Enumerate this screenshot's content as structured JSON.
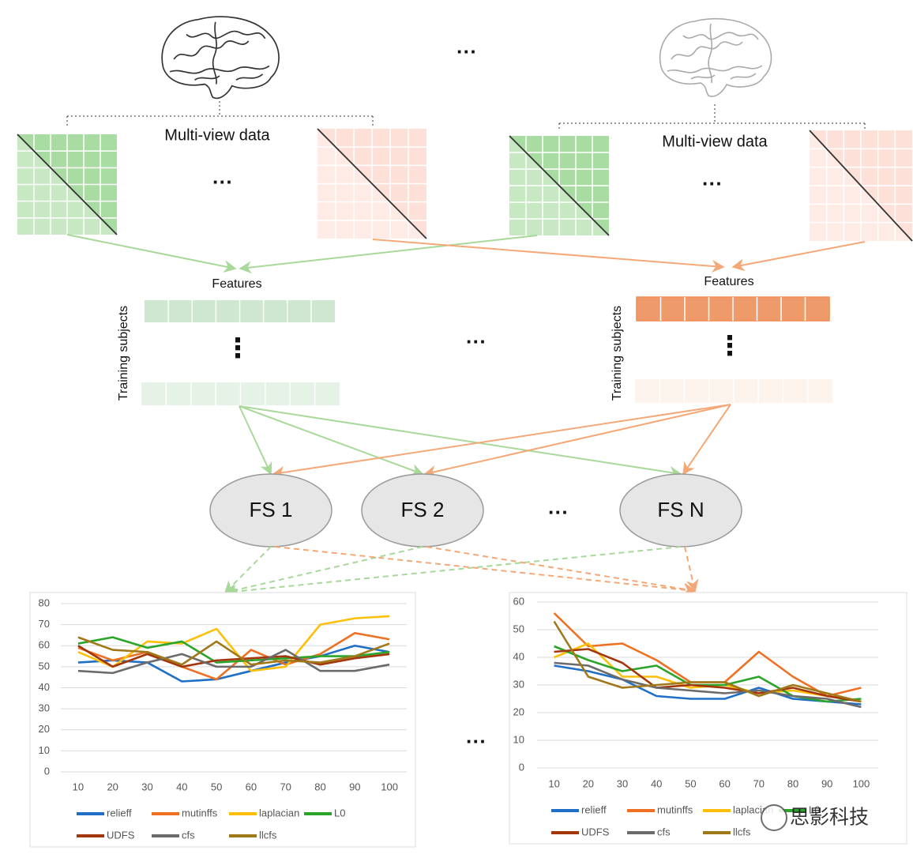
{
  "diagram": {
    "multi_view_label": "Multi-view data",
    "features_label": "Features",
    "subjects_label": "Training subjects",
    "fs_nodes": [
      "FS 1",
      "FS 2",
      "FS N"
    ],
    "ellipsis": "···",
    "vertical_ellipsis": "⋮",
    "watermark": "思影科技"
  },
  "chart_data": [
    {
      "type": "line",
      "categories": [
        "10",
        "20",
        "30",
        "40",
        "50",
        "60",
        "70",
        "80",
        "90",
        "100"
      ],
      "ylim": [
        0,
        80
      ],
      "yticks": [
        0,
        10,
        20,
        30,
        40,
        50,
        60,
        70,
        80
      ],
      "grid": true,
      "legend": "bottom",
      "series": [
        {
          "name": "relieff",
          "color": "#1f6fc6",
          "values": [
            52,
            53,
            52,
            43,
            44,
            48,
            52,
            55,
            60,
            57
          ]
        },
        {
          "name": "mutinffs",
          "color": "#ef7022",
          "values": [
            59,
            53,
            57,
            50,
            44,
            58,
            51,
            56,
            66,
            63
          ]
        },
        {
          "name": "laplacian",
          "color": "#fcbf0a",
          "values": [
            57,
            50,
            62,
            61,
            68,
            48,
            50,
            70,
            73,
            74
          ]
        },
        {
          "name": "L0",
          "color": "#2aa52a",
          "values": [
            61,
            64,
            59,
            62,
            52,
            53,
            54,
            55,
            55,
            57
          ]
        },
        {
          "name": "UDFS",
          "color": "#a4360b",
          "values": [
            60,
            50,
            56,
            50,
            53,
            54,
            55,
            51,
            54,
            56
          ]
        },
        {
          "name": "cfs",
          "color": "#6b6b6b",
          "values": [
            48,
            47,
            52,
            56,
            50,
            50,
            58,
            48,
            48,
            51
          ]
        },
        {
          "name": "llcfs",
          "color": "#a07818",
          "values": [
            64,
            58,
            57,
            51,
            62,
            51,
            53,
            52,
            55,
            61
          ]
        }
      ]
    },
    {
      "type": "line",
      "categories": [
        "10",
        "20",
        "30",
        "40",
        "50",
        "60",
        "70",
        "80",
        "90",
        "100"
      ],
      "ylim": [
        0,
        60
      ],
      "yticks": [
        0,
        10,
        20,
        30,
        40,
        50,
        60
      ],
      "grid": true,
      "legend": "bottom",
      "series": [
        {
          "name": "relieff",
          "color": "#1f6fc6",
          "values": [
            37,
            35,
            32,
            26,
            25,
            25,
            29,
            25,
            24,
            23
          ]
        },
        {
          "name": "mutinffs",
          "color": "#ef7022",
          "values": [
            56,
            44,
            45,
            39,
            31,
            31,
            42,
            33,
            26,
            29
          ]
        },
        {
          "name": "laplacian",
          "color": "#fcbf0a",
          "values": [
            40,
            45,
            33,
            33,
            29,
            30,
            27,
            28,
            26,
            24
          ]
        },
        {
          "name": "L0",
          "color": "#2aa52a",
          "values": [
            44,
            39,
            35,
            37,
            30,
            30,
            33,
            26,
            24,
            25
          ]
        },
        {
          "name": "UDFS",
          "color": "#a4360b",
          "values": [
            42,
            43,
            38,
            29,
            30,
            29,
            27,
            29,
            26,
            24
          ]
        },
        {
          "name": "cfs",
          "color": "#6b6b6b",
          "values": [
            38,
            37,
            32,
            29,
            28,
            27,
            28,
            26,
            25,
            22
          ]
        },
        {
          "name": "llcfs",
          "color": "#a07818",
          "values": [
            53,
            33,
            29,
            30,
            31,
            31,
            26,
            30,
            27,
            24
          ]
        }
      ]
    }
  ]
}
